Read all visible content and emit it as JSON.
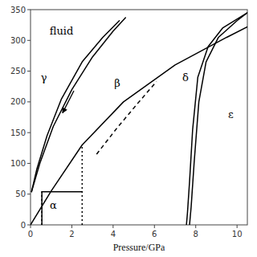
{
  "chart_data": {
    "type": "line",
    "xlabel": "Pressure/GPa",
    "xlim": [
      0,
      10.5
    ],
    "ylim": [
      0,
      350
    ],
    "xticks": [
      0,
      2,
      4,
      6,
      8,
      10
    ],
    "yticks": [
      0,
      50,
      100,
      150,
      200,
      250,
      300,
      350
    ],
    "color": "black",
    "series": [
      {
        "x": [
          0.05,
          0.3,
          0.8,
          1.5,
          2.5,
          3.5,
          4.3
        ],
        "values": [
          54,
          90,
          145,
          205,
          265,
          305,
          332
        ],
        "line_style": "solid"
      },
      {
        "x": [
          0.05,
          0.45,
          1.1,
          2.0,
          3.0,
          4.0,
          4.6
        ],
        "values": [
          54,
          100,
          160,
          220,
          273,
          315,
          337
        ],
        "line_style": "solid"
      },
      {
        "x": [
          0.0,
          1.0,
          2.5,
          4.5,
          7.0,
          9.5,
          10.5
        ],
        "values": [
          0,
          55,
          130,
          200,
          260,
          305,
          322
        ],
        "line_style": "solid"
      },
      {
        "x": [
          7.55,
          7.6,
          7.7,
          7.85,
          8.1,
          8.6,
          9.3,
          10.5
        ],
        "values": [
          0,
          20,
          70,
          155,
          240,
          290,
          320,
          345
        ],
        "line_style": "solid"
      },
      {
        "x": [
          7.7,
          7.78,
          7.92,
          8.15,
          8.5,
          9.1,
          10.0,
          10.5
        ],
        "values": [
          0,
          30,
          100,
          200,
          265,
          305,
          332,
          345
        ],
        "line_style": "solid"
      },
      {
        "x": [
          3.2,
          4.2,
          5.2,
          6.1
        ],
        "values": [
          115,
          158,
          198,
          233
        ],
        "line_style": "dashed"
      },
      {
        "x": [
          0.55,
          2.5
        ],
        "values": [
          54,
          54
        ],
        "line_style": "solid"
      },
      {
        "x": [
          0.55,
          0.55
        ],
        "values": [
          0,
          54
        ],
        "line_style": "solid"
      },
      {
        "x": [
          0.55,
          0.55
        ],
        "values": [
          0,
          54
        ],
        "line_style": "dotted"
      },
      {
        "x": [
          2.5,
          2.5
        ],
        "values": [
          0,
          130
        ],
        "line_style": "dotted"
      }
    ],
    "annotations": [
      {
        "text": "fluid",
        "x": 1.5,
        "y": 315
      },
      {
        "text": "γ",
        "x": 0.65,
        "y": 240
      },
      {
        "text": "β",
        "x": 4.2,
        "y": 230
      },
      {
        "text": "δ",
        "x": 7.5,
        "y": 240
      },
      {
        "text": "ε",
        "x": 9.7,
        "y": 180
      },
      {
        "text": "α",
        "x": 1.1,
        "y": 32
      }
    ],
    "arrows": [
      {
        "x": [
          2.1,
          1.55
        ],
        "y": [
          218,
          182
        ]
      }
    ]
  }
}
